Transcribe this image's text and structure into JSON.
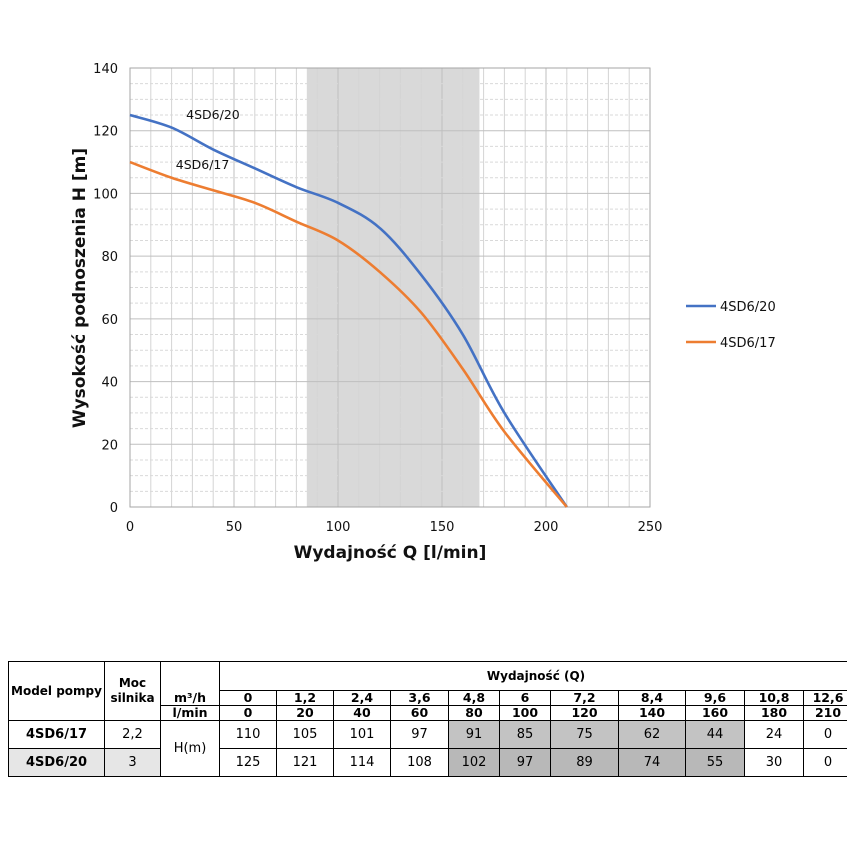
{
  "chart_data": {
    "type": "line",
    "xlabel": "Wydajność Q [l/min]",
    "ylabel": "Wysokość podnoszenia H [m]",
    "xlim": [
      0,
      250
    ],
    "ylim": [
      0,
      140
    ],
    "x_ticks": [
      0,
      50,
      100,
      150,
      200,
      250
    ],
    "y_ticks": [
      0,
      20,
      40,
      60,
      80,
      100,
      120,
      140
    ],
    "grid": true,
    "legend_position": "right",
    "highlight_range": [
      85,
      168
    ],
    "x": [
      0,
      20,
      40,
      60,
      80,
      100,
      120,
      140,
      160,
      180,
      210
    ],
    "series": [
      {
        "name": "4SD6/20",
        "color": "#4472c4",
        "values": [
          125,
          121,
          114,
          108,
          102,
          97,
          89,
          74,
          55,
          30,
          0
        ]
      },
      {
        "name": "4SD6/17",
        "color": "#ed7d31",
        "values": [
          110,
          105,
          101,
          97,
          91,
          85,
          75,
          62,
          44,
          24,
          0
        ]
      }
    ],
    "annotations": [
      {
        "text": "4SD6/20",
        "x": 27,
        "y": 125
      },
      {
        "text": "4SD6/17",
        "x": 22,
        "y": 109
      }
    ]
  },
  "table": {
    "header": {
      "model": "Model pompy",
      "power": "Moc\nsilnika",
      "group": "Wydajność (Q)",
      "unit_m3h": "m³/h",
      "unit_lmin": "l/min",
      "head_unit": "H(m)"
    },
    "m3h": [
      "0",
      "1,2",
      "2,4",
      "3,6",
      "4,8",
      "6",
      "7,2",
      "8,4",
      "9,6",
      "10,8",
      "12,6"
    ],
    "lmin": [
      "0",
      "20",
      "40",
      "60",
      "80",
      "100",
      "120",
      "140",
      "160",
      "180",
      "210"
    ],
    "rows": [
      {
        "model": "4SD6/17",
        "power": "2,2",
        "values": [
          "110",
          "105",
          "101",
          "97",
          "91",
          "85",
          "75",
          "62",
          "44",
          "24",
          "0"
        ]
      },
      {
        "model": "4SD6/20",
        "power": "3",
        "values": [
          "125",
          "121",
          "114",
          "108",
          "102",
          "97",
          "89",
          "74",
          "55",
          "30",
          "0"
        ]
      }
    ],
    "highlight_cols": [
      4,
      5,
      6,
      7,
      8
    ]
  }
}
